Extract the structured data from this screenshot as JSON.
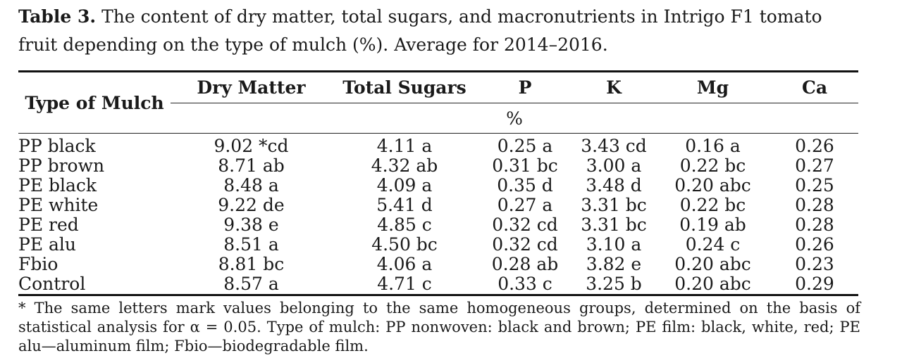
{
  "caption": {
    "label": "Table 3.",
    "text": "The content of dry matter, total sugars, and macronutrients in Intrigo F1 tomato fruit depending on the type of mulch (%). Average for 2014–2016."
  },
  "table": {
    "corner_header": "Type of Mulch",
    "headers": [
      "Dry Matter",
      "Total Sugars",
      "P",
      "K",
      "Mg",
      "Ca"
    ],
    "unit": "%",
    "rows": [
      [
        "PP black",
        "9.02 *cd",
        "4.11 a",
        "0.25 a",
        "3.43 cd",
        "0.16 a",
        "0.26"
      ],
      [
        "PP brown",
        "8.71 ab",
        "4.32 ab",
        "0.31 bc",
        "3.00 a",
        "0.22 bc",
        "0.27"
      ],
      [
        "PE black",
        "8.48 a",
        "4.09 a",
        "0.35 d",
        "3.48 d",
        "0.20 abc",
        "0.25"
      ],
      [
        "PE white",
        "9.22 de",
        "5.41 d",
        "0.27 a",
        "3.31 bc",
        "0.22 bc",
        "0.28"
      ],
      [
        "PE red",
        "9.38 e",
        "4.85 c",
        "0.32 cd",
        "3.31 bc",
        "0.19 ab",
        "0.28"
      ],
      [
        "PE alu",
        "8.51 a",
        "4.50 bc",
        "0.32 cd",
        "3.10 a",
        "0.24 c",
        "0.26"
      ],
      [
        "Fbio",
        "8.81 bc",
        "4.06 a",
        "0.28 ab",
        "3.82 e",
        "0.20 abc",
        "0.23"
      ],
      [
        "Control",
        "8.57 a",
        "4.71 c",
        "0.33 c",
        "3.25 b",
        "0.20 abc",
        "0.29"
      ]
    ]
  },
  "footnote": "* The same letters mark values belonging to the same homogeneous groups, determined on the basis of statistical analysis for α = 0.05. Type of mulch: PP nonwoven: black and brown; PE film: black, white, red; PE alu—aluminum film; Fbio—biodegradable film."
}
